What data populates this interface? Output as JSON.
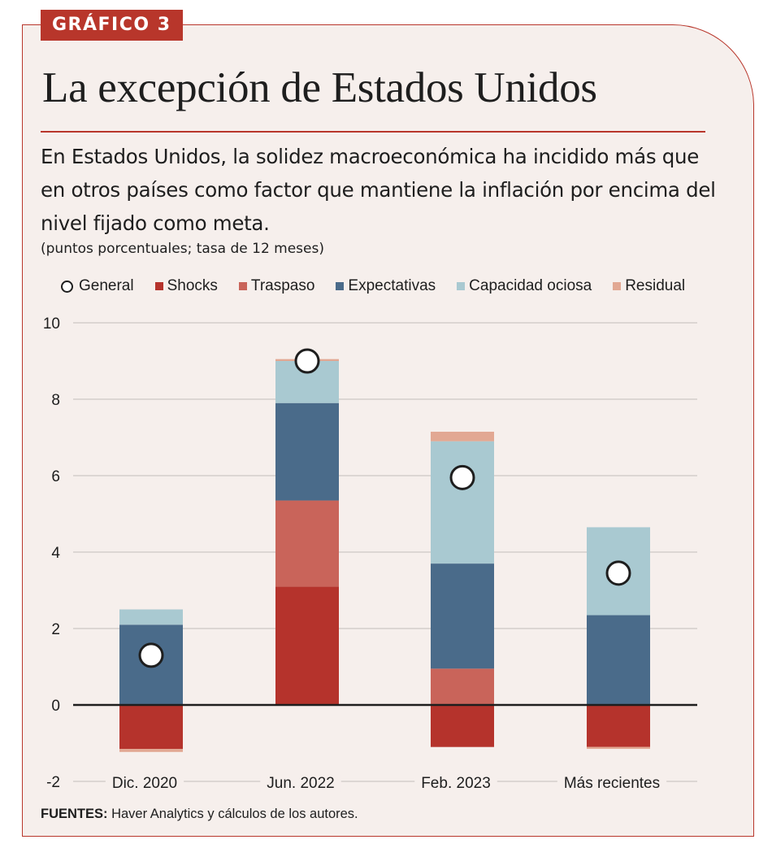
{
  "header": {
    "tag": "GRÁFICO 3",
    "title": "La excepción de Estados Unidos",
    "subtitle": "En Estados Unidos, la solidez macroeconómica ha incidido más que en otros países como factor que mantiene la inflación por encima del nivel fijado como meta.",
    "units": "(puntos porcentuales; tasa de 12 meses)"
  },
  "colors": {
    "accent": "#b8362b",
    "background": "#f6efec",
    "shocks": "#b5332c",
    "traspaso": "#c9645a",
    "expectativas": "#4a6b8a",
    "capacidad": "#a9c9d1",
    "residual": "#e2a893",
    "grid": "#dcd6d3",
    "axis": "#1e1e1e"
  },
  "legend": [
    {
      "label": "General",
      "kind": "circle"
    },
    {
      "label": "Shocks",
      "kind": "square",
      "color": "#b5332c"
    },
    {
      "label": "Traspaso",
      "kind": "square",
      "color": "#c9645a"
    },
    {
      "label": "Expectativas",
      "kind": "square",
      "color": "#4a6b8a"
    },
    {
      "label": "Capacidad ociosa",
      "kind": "square",
      "color": "#a9c9d1"
    },
    {
      "label": "Residual",
      "kind": "square",
      "color": "#e2a893"
    }
  ],
  "chart_data": {
    "type": "bar",
    "stacked": true,
    "title": "La excepción de Estados Unidos",
    "xlabel": "",
    "ylabel": "puntos porcentuales; tasa de 12 meses",
    "ylim": [
      -2,
      10
    ],
    "yticks": [
      -2,
      0,
      2,
      4,
      6,
      8,
      10
    ],
    "ytick_labels": [
      "-2",
      "0",
      "2",
      "4",
      "6",
      "8",
      "10"
    ],
    "grid": true,
    "legend_position": "top",
    "categories": [
      "Dic. 2020",
      "Jun. 2022",
      "Feb. 2023",
      "Más recientes"
    ],
    "series": [
      {
        "name": "Shocks",
        "color": "#b5332c",
        "values": [
          -1.15,
          3.1,
          -1.1,
          -1.1
        ]
      },
      {
        "name": "Traspaso",
        "color": "#c9645a",
        "values": [
          0.0,
          2.25,
          0.95,
          0.0
        ]
      },
      {
        "name": "Expectativas",
        "color": "#4a6b8a",
        "values": [
          2.1,
          2.55,
          2.75,
          2.35
        ]
      },
      {
        "name": "Capacidad ociosa",
        "color": "#a9c9d1",
        "values": [
          0.4,
          1.1,
          3.2,
          2.3
        ]
      },
      {
        "name": "Residual",
        "color": "#e2a893",
        "values": [
          -0.08,
          0.05,
          0.25,
          -0.05
        ]
      }
    ],
    "general": {
      "name": "General",
      "values": [
        1.3,
        9.0,
        5.95,
        3.45
      ]
    }
  },
  "source": {
    "label": "FUENTES:",
    "text": " Haver Analytics y cálculos de los autores."
  }
}
